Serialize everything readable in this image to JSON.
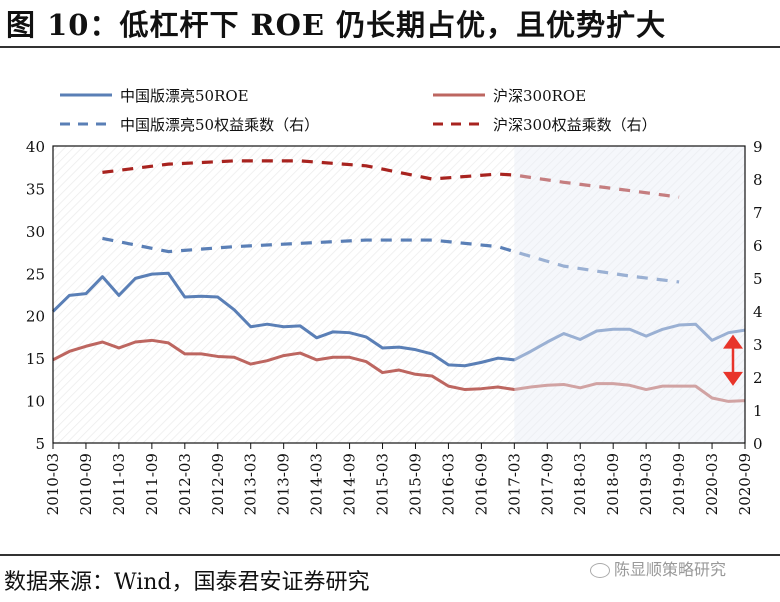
{
  "title": "图 10：低杠杆下 ROE 仍长期占优，且优势扩大",
  "source": "数据来源：Wind，国泰君安证券研究",
  "watermark": "陈显顺策略研究",
  "watermark_icon": "wechat-icon",
  "chart_data": {
    "type": "line",
    "title": "",
    "y_left": {
      "range": [
        5,
        40
      ],
      "ticks": [
        "5",
        "10",
        "15",
        "20",
        "25",
        "30",
        "35",
        "40"
      ]
    },
    "y_right": {
      "range": [
        0,
        9
      ],
      "ticks": [
        "0",
        "1",
        "2",
        "3",
        "4",
        "5",
        "6",
        "7",
        "8",
        "9"
      ]
    },
    "x_tick_labels": [
      "2010-03",
      "2010-09",
      "2011-03",
      "2011-09",
      "2012-03",
      "2012-09",
      "2013-03",
      "2013-09",
      "2014-03",
      "2014-09",
      "2015-03",
      "2015-09",
      "2016-03",
      "2016-09",
      "2017-03",
      "2017-09",
      "2018-03",
      "2018-09",
      "2019-03",
      "2019-09",
      "2020-03",
      "2020-09"
    ],
    "shaded_region_start": "2017-03",
    "annotation": "red double arrow marking the widening ROE gap at 2020",
    "legend_position": "top",
    "colors": {
      "blue": "#5a7fb6",
      "red": "#bd6660",
      "darkred": "#a8231f",
      "dashblue": "#5a7fb6",
      "shade": "#e9eef6",
      "arrow": "#e8342a"
    },
    "series": [
      {
        "name": "中国版漂亮50ROE",
        "axis": "left",
        "style": "solid",
        "color": "blue",
        "start": "2010-03",
        "freq": "quarter",
        "values": [
          20.5,
          22.4,
          22.6,
          24.6,
          22.4,
          24.4,
          24.9,
          25.0,
          22.2,
          22.3,
          22.2,
          20.7,
          18.7,
          19.0,
          18.7,
          18.8,
          17.4,
          18.1,
          18.0,
          17.5,
          16.2,
          16.3,
          16.0,
          15.5,
          14.2,
          14.1,
          14.5,
          15.0,
          14.8,
          15.8,
          16.9,
          17.9,
          17.2,
          18.2,
          18.4,
          18.4,
          17.6,
          18.4,
          18.9,
          19.0,
          17.1,
          18.0,
          18.3
        ]
      },
      {
        "name": "沪深300ROE",
        "axis": "left",
        "style": "solid",
        "color": "red",
        "start": "2010-03",
        "freq": "quarter",
        "values": [
          14.8,
          15.8,
          16.4,
          16.9,
          16.2,
          16.9,
          17.1,
          16.8,
          15.5,
          15.5,
          15.2,
          15.1,
          14.3,
          14.7,
          15.3,
          15.6,
          14.8,
          15.1,
          15.1,
          14.6,
          13.3,
          13.6,
          13.1,
          12.9,
          11.7,
          11.3,
          11.4,
          11.6,
          11.3,
          11.6,
          11.8,
          11.9,
          11.5,
          12.0,
          12.0,
          11.8,
          11.3,
          11.7,
          11.7,
          11.7,
          10.3,
          9.9,
          10.0
        ]
      },
      {
        "name": "中国版漂亮50权益乘数（右）",
        "axis": "right",
        "style": "dashed",
        "color": "dashblue",
        "x": [
          "2010-12",
          "2011-12",
          "2012-12",
          "2013-12",
          "2014-12",
          "2015-12",
          "2016-12",
          "2017-03",
          "2017-12",
          "2018-12",
          "2019-09"
        ],
        "values": [
          6.2,
          5.8,
          5.95,
          6.05,
          6.15,
          6.15,
          5.95,
          5.8,
          5.36,
          5.06,
          4.88
        ]
      },
      {
        "name": "沪深300权益乘数（右）",
        "axis": "right",
        "style": "dashed",
        "color": "darkred",
        "x": [
          "2010-12",
          "2011-12",
          "2012-12",
          "2013-12",
          "2014-12",
          "2015-12",
          "2016-12",
          "2017-03",
          "2017-12",
          "2018-12",
          "2019-09"
        ],
        "values": [
          8.2,
          8.45,
          8.55,
          8.55,
          8.4,
          8.0,
          8.15,
          8.12,
          7.9,
          7.65,
          7.45
        ]
      }
    ]
  }
}
